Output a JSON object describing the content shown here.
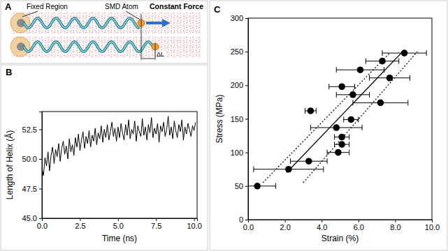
{
  "chart_data": [
    {
      "type": "line",
      "title": "B",
      "x_label": "Time (ns)",
      "y_label": "Length of Helix (Å)",
      "color": "#000000",
      "x": [
        0,
        0.1,
        0.2,
        0.3,
        0.4,
        0.5,
        0.6,
        0.7,
        0.8,
        0.9,
        1,
        1.1,
        1.2,
        1.3,
        1.4,
        1.5,
        1.6,
        1.7,
        1.8,
        1.9,
        2,
        2.1,
        2.2,
        2.3,
        2.4,
        2.5,
        2.6,
        2.7,
        2.8,
        2.9,
        3,
        3.1,
        3.2,
        3.3,
        3.4,
        3.5,
        3.6,
        3.7,
        3.8,
        3.9,
        4,
        4.1,
        4.2,
        4.3,
        4.4,
        4.5,
        4.6,
        4.7,
        4.8,
        4.9,
        5,
        5.1,
        5.2,
        5.3,
        5.4,
        5.5,
        5.6,
        5.7,
        5.8,
        5.9,
        6,
        6.1,
        6.2,
        6.3,
        6.4,
        6.5,
        6.6,
        6.7,
        6.8,
        6.9,
        7,
        7.1,
        7.2,
        7.3,
        7.4,
        7.5,
        7.6,
        7.7,
        7.8,
        7.9,
        8,
        8.1,
        8.2,
        8.3,
        8.4,
        8.5,
        8.6,
        8.7,
        8.8,
        8.9,
        9,
        9.1,
        9.2,
        9.3,
        9.4,
        9.5,
        9.6,
        9.7,
        9.8,
        9.9,
        10,
        10.1
      ],
      "values": [
        49.2,
        48.6,
        50.1,
        49.4,
        50.6,
        49.0,
        50.3,
        51.0,
        49.6,
        50.8,
        50.2,
        51.3,
        49.8,
        50.9,
        51.5,
        50.4,
        51.1,
        50.0,
        51.7,
        50.6,
        51.2,
        50.3,
        51.8,
        51.0,
        52.1,
        50.7,
        51.6,
        52.3,
        50.9,
        51.9,
        51.3,
        52.4,
        51.0,
        52.0,
        51.5,
        52.6,
        51.2,
        52.2,
        51.7,
        52.8,
        51.4,
        52.5,
        51.8,
        52.9,
        51.6,
        52.3,
        53.1,
        51.9,
        52.6,
        51.5,
        52.7,
        51.8,
        53.0,
        52.2,
        51.6,
        52.9,
        52.0,
        53.3,
        51.7,
        52.5,
        52.1,
        53.2,
        51.5,
        52.8,
        52.3,
        51.9,
        53.4,
        52.0,
        52.7,
        51.6,
        52.9,
        52.2,
        53.5,
        51.8,
        52.6,
        52.1,
        53.0,
        51.4,
        52.8,
        52.3,
        53.1,
        51.9,
        52.5,
        53.6,
        52.0,
        52.7,
        51.7,
        53.2,
        52.4,
        51.8,
        52.9,
        52.3,
        53.3,
        51.6,
        52.7,
        52.1,
        53.0,
        52.5,
        51.9,
        52.8,
        52.4,
        53.1
      ],
      "xlim": [
        0,
        10.2
      ],
      "xticks": [
        {
          "value": 0,
          "label": "0.0"
        },
        {
          "value": 2.5,
          "label": "2.5"
        },
        {
          "value": 5,
          "label": "5.0"
        },
        {
          "value": 7.5,
          "label": "7.5"
        },
        {
          "value": 10,
          "label": "10.0"
        }
      ],
      "ylim": [
        45,
        54
      ],
      "yticks": [
        {
          "value": 45,
          "label": "45.0"
        },
        {
          "value": 47.5,
          "label": "47.5"
        },
        {
          "value": 50,
          "label": "50.0"
        },
        {
          "value": 52.5,
          "label": "52.5"
        }
      ],
      "grid": false
    },
    {
      "type": "scatter",
      "title": "C",
      "x_label": "Strain (%)",
      "y_label": "Stress (MPa)",
      "color": "#000000",
      "marker": "circle",
      "x": [
        0.5,
        2.2,
        3.3,
        4.9,
        5.1,
        5.1,
        4.8,
        5.6,
        3.4,
        7.2,
        5.7,
        5.1,
        7.7,
        6.1,
        7.3,
        8.5
      ],
      "values": [
        50,
        75,
        87,
        100,
        112,
        123,
        137,
        149,
        162,
        174,
        186,
        198,
        211,
        223,
        236,
        248
      ],
      "x_error": [
        1.0,
        1.9,
        1.0,
        0.6,
        0.4,
        0.4,
        1.4,
        0.4,
        0.3,
        1.5,
        0.9,
        0.7,
        1.1,
        1.3,
        0.9,
        1.2
      ],
      "lines": [
        {
          "x": [
            2.1,
            8.4
          ],
          "values": [
            70,
            250
          ],
          "line_style": "solid"
        },
        {
          "x": [
            0.8,
            7.7
          ],
          "values": [
            55,
            248
          ],
          "line_style": "dotted"
        },
        {
          "x": [
            3.0,
            9.2
          ],
          "values": [
            55,
            250
          ],
          "line_style": "dotted"
        }
      ],
      "xlim": [
        0,
        10
      ],
      "xticks": [
        {
          "value": 0,
          "label": "0.0"
        },
        {
          "value": 2,
          "label": "2.0"
        },
        {
          "value": 4,
          "label": "4.0"
        },
        {
          "value": 6,
          "label": "6.0"
        },
        {
          "value": 8,
          "label": "8.0"
        },
        {
          "value": 10,
          "label": "10.0"
        }
      ],
      "ylim": [
        0,
        300
      ],
      "yticks": [
        0,
        50,
        100,
        150,
        200,
        250,
        300
      ],
      "grid": false
    }
  ],
  "diagram": {
    "title": "A",
    "labels": [
      "Fixed Region",
      "SMD Atom",
      "Constant Force",
      "ΔL"
    ]
  }
}
